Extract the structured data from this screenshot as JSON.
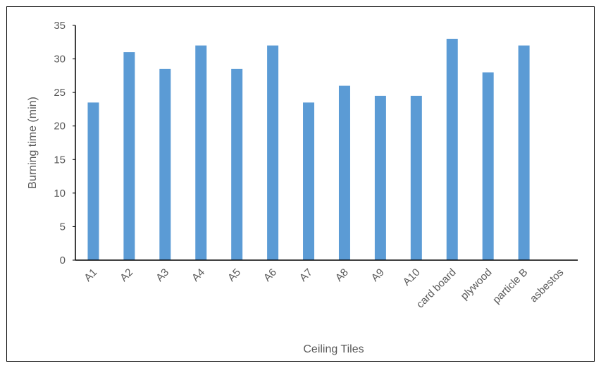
{
  "chart_data": {
    "type": "bar",
    "title": "",
    "xlabel": "Ceiling Tiles",
    "ylabel": "Burning time (min)",
    "categories": [
      "A1",
      "A2",
      "A3",
      "A4",
      "A5",
      "A6",
      "A7",
      "A8",
      "A9",
      "A10",
      "card board",
      "plywood",
      "particle B",
      "asbestos"
    ],
    "series": [
      {
        "values": [
          23.5,
          31,
          28.5,
          32,
          28.5,
          32,
          23.5,
          26,
          24.5,
          24.5,
          33,
          28,
          32,
          0
        ]
      }
    ],
    "ylim": [
      0,
      35
    ],
    "yticks": [
      0,
      5,
      10,
      15,
      20,
      25,
      30,
      35
    ],
    "bar_color": "#5b9bd5",
    "axis_color": "#000000",
    "text_color": "#595959",
    "grid": false,
    "legend": "none"
  }
}
